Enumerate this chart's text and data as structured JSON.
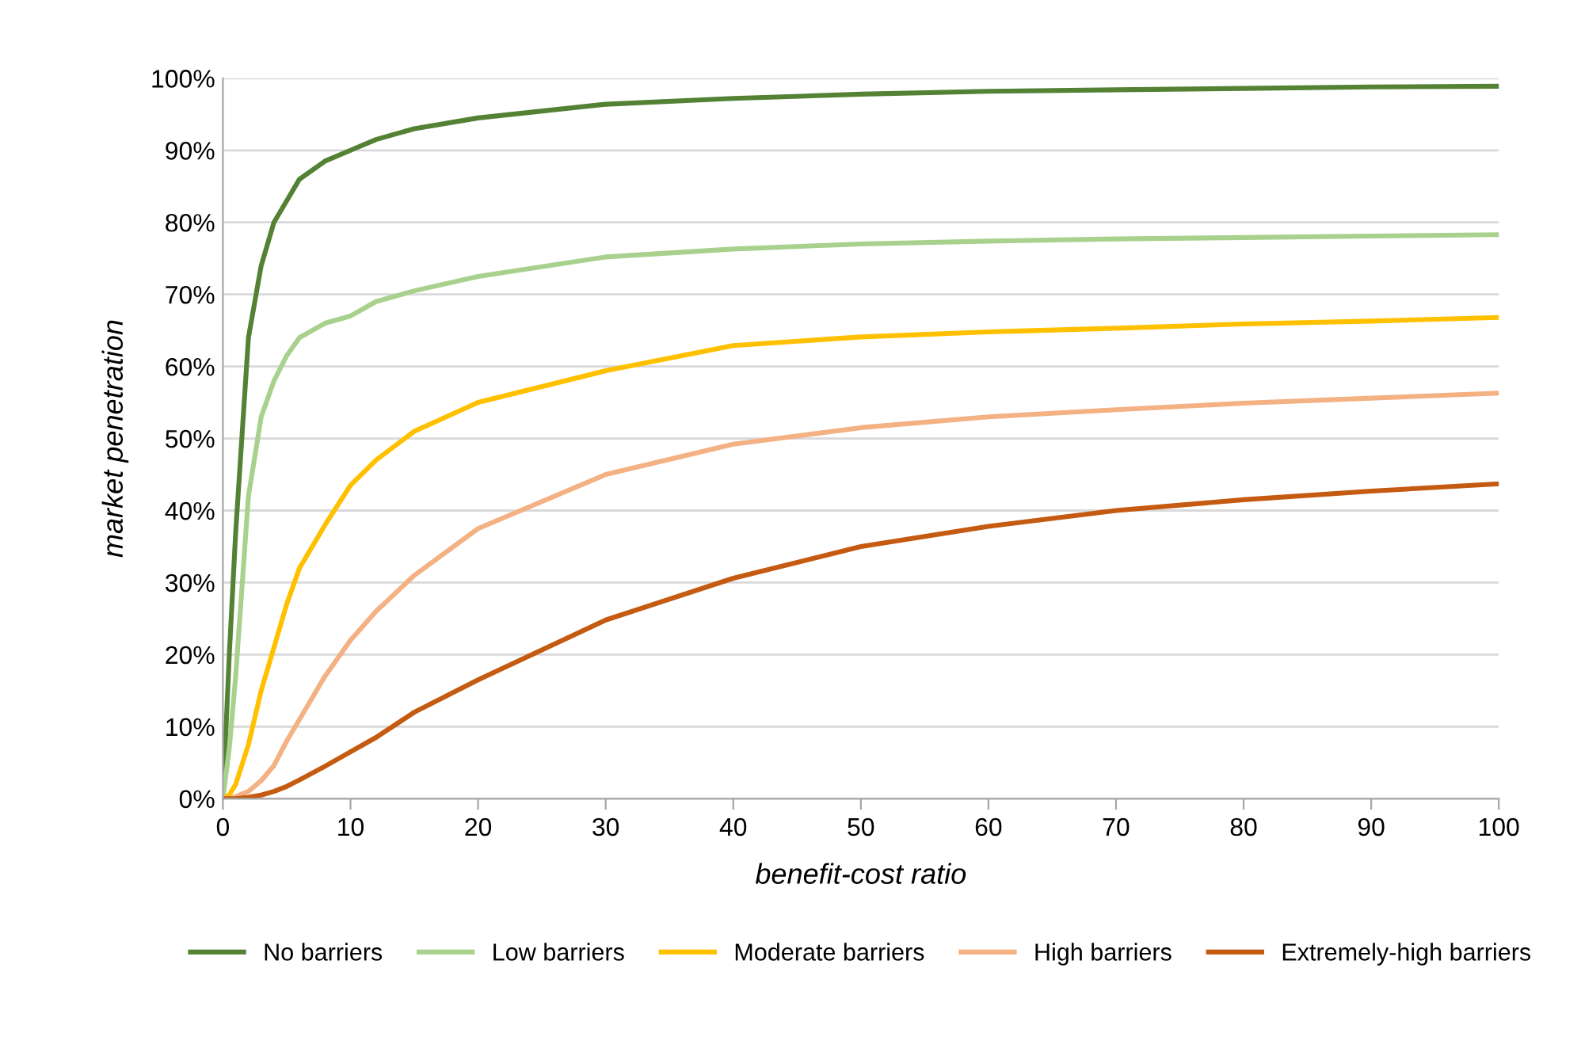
{
  "chart_data": {
    "type": "line",
    "xlabel": "benefit-cost ratio",
    "ylabel": "market penetration",
    "xlim": [
      0,
      100
    ],
    "xticks": [
      0,
      10,
      20,
      30,
      40,
      50,
      60,
      70,
      80,
      90,
      100
    ],
    "ylim": [
      0,
      100
    ],
    "yticks": [
      {
        "value": 0,
        "label": "0%"
      },
      {
        "value": 10,
        "label": "10%"
      },
      {
        "value": 20,
        "label": "20%"
      },
      {
        "value": 30,
        "label": "30%"
      },
      {
        "value": 40,
        "label": "40%"
      },
      {
        "value": 50,
        "label": "50%"
      },
      {
        "value": 60,
        "label": "60%"
      },
      {
        "value": 70,
        "label": "70%"
      },
      {
        "value": 80,
        "label": "80%"
      },
      {
        "value": 90,
        "label": "90%"
      },
      {
        "value": 100,
        "label": "100%"
      }
    ],
    "grid": "y",
    "legend": "bottom",
    "marker": "none",
    "line_style": "solid",
    "x": [
      0,
      0.5,
      1,
      2,
      3,
      4,
      5,
      6,
      8,
      10,
      12,
      15,
      20,
      30,
      40,
      50,
      60,
      70,
      80,
      90,
      100
    ],
    "series": [
      {
        "name": "No barriers",
        "color": "#548235",
        "values": [
          0,
          20,
          37,
          64,
          74,
          80,
          83,
          86,
          88.5,
          90,
          91.5,
          93,
          94.5,
          96.4,
          97.2,
          97.8,
          98.2,
          98.4,
          98.6,
          98.8,
          98.9
        ]
      },
      {
        "name": "Low barriers",
        "color": "#a9d18e",
        "values": [
          0,
          7,
          17,
          42,
          53,
          58,
          61.5,
          64,
          66,
          67,
          69,
          70.5,
          72.5,
          75.2,
          76.3,
          77,
          77.4,
          77.7,
          77.9,
          78.1,
          78.3
        ]
      },
      {
        "name": "Moderate barriers",
        "color": "#ffc000",
        "values": [
          0,
          0.5,
          2,
          7.5,
          15,
          21,
          27,
          32,
          38,
          43.5,
          47,
          51,
          55,
          59.4,
          62.9,
          64.1,
          64.8,
          65.3,
          65.9,
          66.3,
          66.8
        ]
      },
      {
        "name": "High barriers",
        "color": "#f4b183",
        "values": [
          0,
          0,
          0.3,
          1,
          2.5,
          4.6,
          8,
          11,
          17,
          22,
          26,
          31,
          37.5,
          45,
          49.2,
          51.5,
          53,
          54,
          54.9,
          55.6,
          56.3
        ]
      },
      {
        "name": "Extremely-high barriers",
        "color": "#c55a11",
        "values": [
          0,
          0,
          0,
          0.2,
          0.5,
          1,
          1.7,
          2.6,
          4.5,
          6.5,
          8.5,
          12,
          16.5,
          24.8,
          30.6,
          35,
          37.8,
          40,
          41.5,
          42.7,
          43.7
        ]
      }
    ]
  }
}
